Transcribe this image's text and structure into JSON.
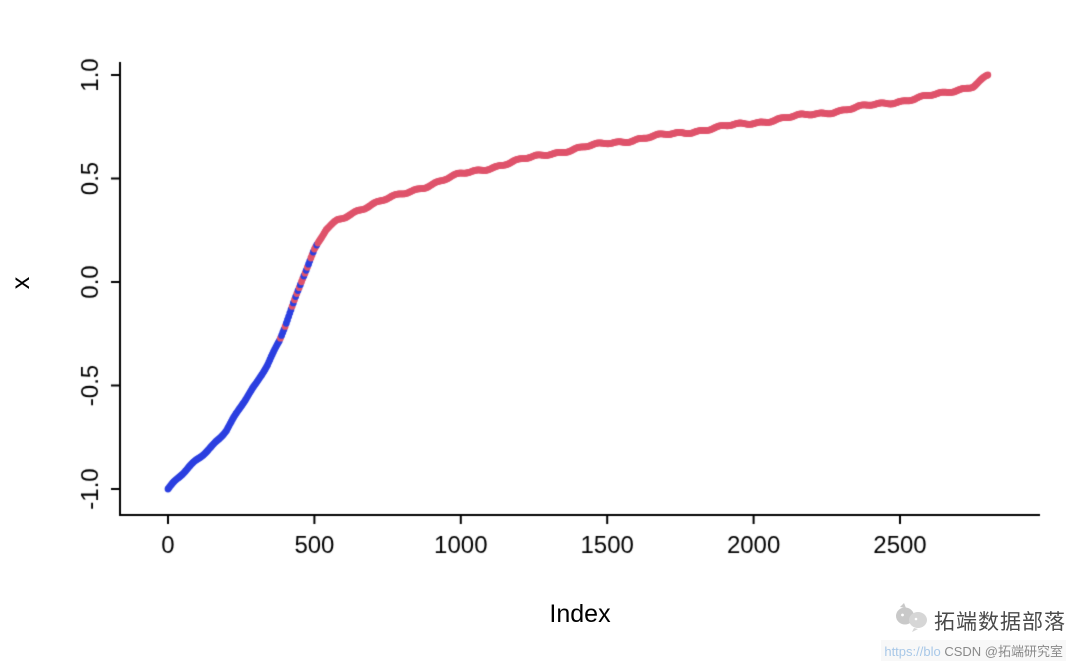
{
  "chart_data": {
    "type": "scatter",
    "title": "",
    "xlabel": "Index",
    "ylabel": "x",
    "xlim": [
      0,
      2800
    ],
    "ylim": [
      -1.0,
      1.0
    ],
    "x_ticks": [
      0,
      500,
      1000,
      1500,
      2000,
      2500
    ],
    "x_tick_labels": [
      "0",
      "500",
      "1000",
      "1500",
      "2000",
      "2500"
    ],
    "y_ticks": [
      -1.0,
      -0.5,
      0.0,
      0.5,
      1.0
    ],
    "y_tick_labels": [
      "-1.0",
      "-0.5",
      "0.0",
      "0.5",
      "1.0"
    ],
    "grid": false,
    "legend": false,
    "n_points": 2800,
    "point_step": 4,
    "point_radius": 3.4,
    "series": [
      {
        "name": "lower-segment",
        "color": "#2b3fe0"
      },
      {
        "name": "upper-segment",
        "color": "#df536b"
      }
    ],
    "color_transition": {
      "mix_start": 345,
      "mix_end": 555
    },
    "curve_anchors": {
      "index": [
        0,
        50,
        100,
        150,
        200,
        250,
        300,
        340,
        380,
        420,
        460,
        500,
        540,
        580,
        650,
        750,
        850,
        1000,
        1150,
        1300,
        1500,
        1700,
        1900,
        2100,
        2300,
        2500,
        2650,
        2750,
        2800
      ],
      "value": [
        -1.0,
        -0.93,
        -0.86,
        -0.79,
        -0.71,
        -0.6,
        -0.5,
        -0.4,
        -0.28,
        -0.13,
        0.02,
        0.15,
        0.25,
        0.3,
        0.35,
        0.4,
        0.45,
        0.52,
        0.57,
        0.62,
        0.67,
        0.71,
        0.75,
        0.79,
        0.83,
        0.875,
        0.91,
        0.95,
        1.0
      ]
    }
  },
  "watermark": {
    "brand": "拓端数据部落",
    "url_fragment": "https://blo",
    "handle": "CSDN @拓端研究室"
  }
}
